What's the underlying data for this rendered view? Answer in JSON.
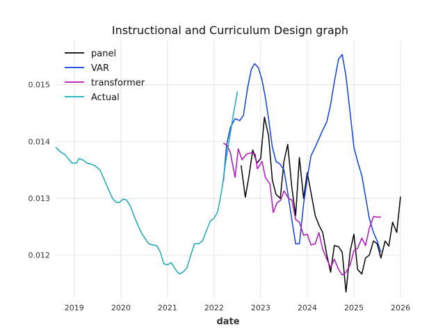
{
  "chart_data": {
    "type": "line",
    "title": "Instructional and Curriculum Design graph",
    "xlabel": "date",
    "ylabel": "",
    "xlim": [
      2018.6,
      2026.0
    ],
    "ylim": [
      0.01125,
      0.01578
    ],
    "grid": true,
    "legend_position": "top-left",
    "x_ticks": [
      {
        "value": 2019,
        "label": "2019"
      },
      {
        "value": 2020,
        "label": "2020"
      },
      {
        "value": 2021,
        "label": "2021"
      },
      {
        "value": 2022,
        "label": "2022"
      },
      {
        "value": 2023,
        "label": "2023"
      },
      {
        "value": 2024,
        "label": "2024"
      },
      {
        "value": 2025,
        "label": "2025"
      },
      {
        "value": 2026,
        "label": "2026"
      }
    ],
    "y_ticks": [
      {
        "value": 0.012,
        "label": "0.012"
      },
      {
        "value": 0.013,
        "label": "0.013"
      },
      {
        "value": 0.014,
        "label": "0.014"
      },
      {
        "value": 0.015,
        "label": "0.015"
      }
    ],
    "series": [
      {
        "name": "panel",
        "color": "#000000",
        "points": [
          [
            2022.58,
            0.01358
          ],
          [
            2022.67,
            0.01302
          ],
          [
            2022.75,
            0.0134
          ],
          [
            2022.83,
            0.01385
          ],
          [
            2022.92,
            0.01362
          ],
          [
            2023.0,
            0.0137
          ],
          [
            2023.08,
            0.01443
          ],
          [
            2023.17,
            0.0141
          ],
          [
            2023.25,
            0.01332
          ],
          [
            2023.33,
            0.01307
          ],
          [
            2023.42,
            0.013
          ],
          [
            2023.5,
            0.01365
          ],
          [
            2023.58,
            0.01395
          ],
          [
            2023.67,
            0.01318
          ],
          [
            2023.75,
            0.0127
          ],
          [
            2023.83,
            0.01372
          ],
          [
            2023.92,
            0.013
          ],
          [
            2024.0,
            0.01345
          ],
          [
            2024.08,
            0.0131
          ],
          [
            2024.17,
            0.0127
          ],
          [
            2024.25,
            0.01253
          ],
          [
            2024.33,
            0.0124
          ],
          [
            2024.42,
            0.012
          ],
          [
            2024.5,
            0.0117
          ],
          [
            2024.58,
            0.01217
          ],
          [
            2024.67,
            0.01215
          ],
          [
            2024.75,
            0.01205
          ],
          [
            2024.83,
            0.01135
          ],
          [
            2024.92,
            0.01207
          ],
          [
            2025.0,
            0.01237
          ],
          [
            2025.08,
            0.01175
          ],
          [
            2025.17,
            0.01167
          ],
          [
            2025.25,
            0.01195
          ],
          [
            2025.33,
            0.012
          ],
          [
            2025.42,
            0.01225
          ],
          [
            2025.5,
            0.0122
          ],
          [
            2025.58,
            0.01195
          ],
          [
            2025.67,
            0.01225
          ],
          [
            2025.75,
            0.01216
          ],
          [
            2025.83,
            0.01258
          ],
          [
            2025.92,
            0.0124
          ],
          [
            2026.0,
            0.01303
          ]
        ]
      },
      {
        "name": "VAR",
        "color": "#0a3fe6",
        "points": [
          [
            2022.2,
            0.0133
          ],
          [
            2022.27,
            0.01395
          ],
          [
            2022.35,
            0.01425
          ],
          [
            2022.45,
            0.0144
          ],
          [
            2022.55,
            0.01437
          ],
          [
            2022.63,
            0.01446
          ],
          [
            2022.72,
            0.01495
          ],
          [
            2022.8,
            0.01527
          ],
          [
            2022.87,
            0.01537
          ],
          [
            2022.95,
            0.0153
          ],
          [
            2023.03,
            0.01508
          ],
          [
            2023.1,
            0.01478
          ],
          [
            2023.17,
            0.0144
          ],
          [
            2023.25,
            0.0139
          ],
          [
            2023.33,
            0.01365
          ],
          [
            2023.42,
            0.0136
          ],
          [
            2023.5,
            0.0135
          ],
          [
            2023.58,
            0.0131
          ],
          [
            2023.67,
            0.01262
          ],
          [
            2023.75,
            0.0122
          ],
          [
            2023.83,
            0.0122
          ],
          [
            2023.92,
            0.0129
          ],
          [
            2024.0,
            0.01335
          ],
          [
            2024.08,
            0.01375
          ],
          [
            2024.17,
            0.0139
          ],
          [
            2024.25,
            0.01405
          ],
          [
            2024.33,
            0.0142
          ],
          [
            2024.42,
            0.01435
          ],
          [
            2024.5,
            0.01465
          ],
          [
            2024.58,
            0.01505
          ],
          [
            2024.67,
            0.01545
          ],
          [
            2024.75,
            0.01553
          ],
          [
            2024.83,
            0.01515
          ],
          [
            2024.92,
            0.0145
          ],
          [
            2025.0,
            0.0139
          ],
          [
            2025.08,
            0.01365
          ],
          [
            2025.17,
            0.0134
          ],
          [
            2025.25,
            0.01303
          ],
          [
            2025.33,
            0.01265
          ],
          [
            2025.42,
            0.0124
          ],
          [
            2025.5,
            0.01225
          ],
          [
            2025.58,
            0.01205
          ]
        ]
      },
      {
        "name": "transformer",
        "color": "#b40fbf",
        "points": [
          [
            2022.2,
            0.01397
          ],
          [
            2022.28,
            0.01393
          ],
          [
            2022.35,
            0.0138
          ],
          [
            2022.45,
            0.01337
          ],
          [
            2022.52,
            0.01387
          ],
          [
            2022.6,
            0.01368
          ],
          [
            2022.7,
            0.01378
          ],
          [
            2022.8,
            0.0138
          ],
          [
            2022.88,
            0.01378
          ],
          [
            2022.93,
            0.01352
          ],
          [
            2023.03,
            0.01365
          ],
          [
            2023.1,
            0.01337
          ],
          [
            2023.2,
            0.01325
          ],
          [
            2023.27,
            0.01275
          ],
          [
            2023.35,
            0.01292
          ],
          [
            2023.43,
            0.01297
          ],
          [
            2023.5,
            0.01313
          ],
          [
            2023.6,
            0.013
          ],
          [
            2023.67,
            0.01297
          ],
          [
            2023.75,
            0.01263
          ],
          [
            2023.83,
            0.01258
          ],
          [
            2023.92,
            0.01235
          ],
          [
            2024.0,
            0.01237
          ],
          [
            2024.08,
            0.01218
          ],
          [
            2024.17,
            0.0122
          ],
          [
            2024.25,
            0.0124
          ],
          [
            2024.33,
            0.0121
          ],
          [
            2024.42,
            0.01193
          ],
          [
            2024.5,
            0.01178
          ],
          [
            2024.58,
            0.01193
          ],
          [
            2024.67,
            0.01175
          ],
          [
            2024.75,
            0.01165
          ],
          [
            2024.83,
            0.0117
          ],
          [
            2024.92,
            0.01183
          ],
          [
            2025.0,
            0.01208
          ],
          [
            2025.08,
            0.01212
          ],
          [
            2025.17,
            0.0123
          ],
          [
            2025.25,
            0.01217
          ],
          [
            2025.33,
            0.01247
          ],
          [
            2025.42,
            0.01268
          ],
          [
            2025.5,
            0.01267
          ],
          [
            2025.58,
            0.01267
          ]
        ]
      },
      {
        "name": "Actual",
        "color": "#17a8b8",
        "points": [
          [
            2018.6,
            0.0139
          ],
          [
            2018.7,
            0.01382
          ],
          [
            2018.8,
            0.01377
          ],
          [
            2018.9,
            0.01367
          ],
          [
            2018.95,
            0.01362
          ],
          [
            2019.05,
            0.01362
          ],
          [
            2019.1,
            0.0137
          ],
          [
            2019.2,
            0.01367
          ],
          [
            2019.27,
            0.01362
          ],
          [
            2019.37,
            0.0136
          ],
          [
            2019.45,
            0.01357
          ],
          [
            2019.55,
            0.0135
          ],
          [
            2019.65,
            0.01332
          ],
          [
            2019.72,
            0.01318
          ],
          [
            2019.82,
            0.013
          ],
          [
            2019.9,
            0.01293
          ],
          [
            2019.97,
            0.01293
          ],
          [
            2020.05,
            0.01299
          ],
          [
            2020.12,
            0.01297
          ],
          [
            2020.2,
            0.01287
          ],
          [
            2020.28,
            0.0127
          ],
          [
            2020.37,
            0.01252
          ],
          [
            2020.45,
            0.01238
          ],
          [
            2020.53,
            0.01228
          ],
          [
            2020.6,
            0.0122
          ],
          [
            2020.68,
            0.01218
          ],
          [
            2020.77,
            0.01217
          ],
          [
            2020.85,
            0.01205
          ],
          [
            2020.92,
            0.01185
          ],
          [
            2021.0,
            0.01183
          ],
          [
            2021.08,
            0.01187
          ],
          [
            2021.17,
            0.01175
          ],
          [
            2021.25,
            0.01167
          ],
          [
            2021.33,
            0.0117
          ],
          [
            2021.42,
            0.01178
          ],
          [
            2021.5,
            0.012
          ],
          [
            2021.58,
            0.0122
          ],
          [
            2021.67,
            0.0122
          ],
          [
            2021.75,
            0.01225
          ],
          [
            2021.83,
            0.01242
          ],
          [
            2021.92,
            0.0126
          ],
          [
            2022.0,
            0.01265
          ],
          [
            2022.08,
            0.01277
          ],
          [
            2022.17,
            0.01317
          ],
          [
            2022.25,
            0.01365
          ],
          [
            2022.33,
            0.01405
          ],
          [
            2022.42,
            0.0145
          ],
          [
            2022.5,
            0.01488
          ]
        ]
      }
    ]
  }
}
